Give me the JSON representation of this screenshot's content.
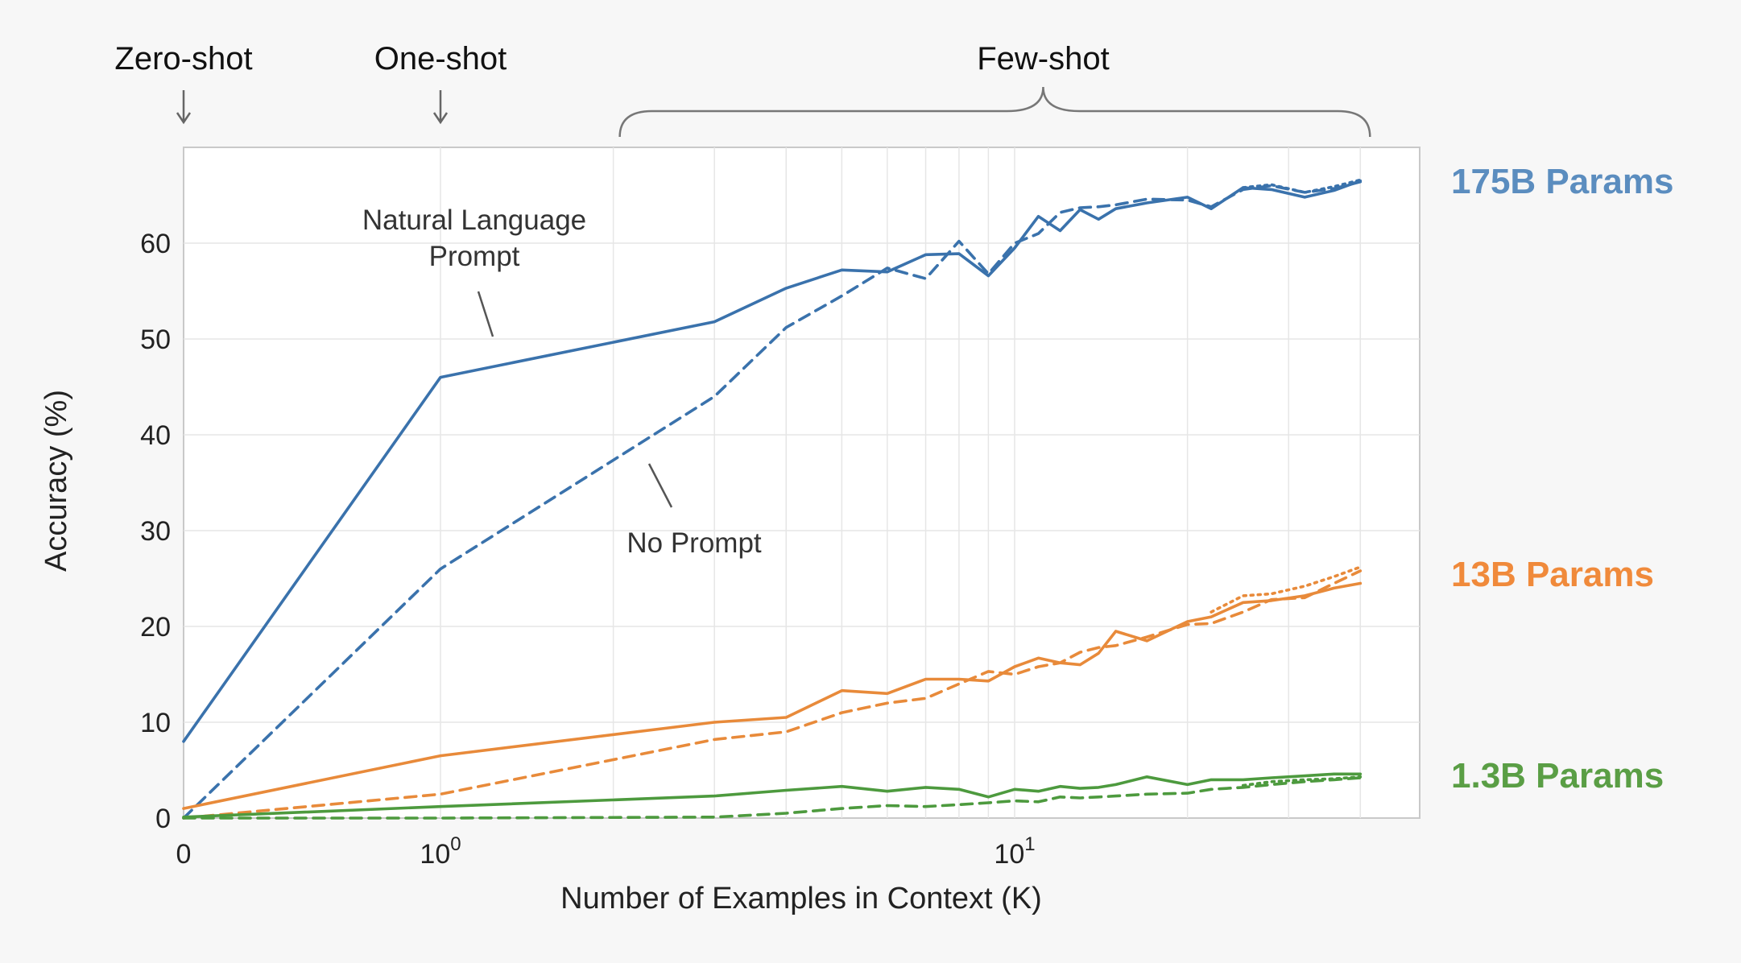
{
  "chart_data": {
    "type": "line",
    "xlabel": "Number of Examples in Context  (K)",
    "ylabel": "Accuracy (%)",
    "x_scale": "symlog",
    "xlim": [
      0,
      40
    ],
    "ylim": [
      0,
      70
    ],
    "y_ticks": [
      0,
      10,
      20,
      30,
      40,
      50,
      60
    ],
    "x_ticks": [
      {
        "value": 0,
        "base": "0",
        "exp": ""
      },
      {
        "value": 1,
        "base": "10",
        "exp": "0"
      },
      {
        "value": 10,
        "base": "10",
        "exp": "1"
      }
    ],
    "grid": true,
    "regimes": [
      {
        "label": "Zero-shot",
        "x": 0
      },
      {
        "label": "One-shot",
        "x": 1
      },
      {
        "label": "Few-shot",
        "x_range": [
          2,
          40
        ]
      }
    ],
    "annotations": [
      {
        "text_lines": [
          "Natural Language",
          "Prompt"
        ],
        "target": "175B Params"
      },
      {
        "text_lines": [
          "No Prompt"
        ],
        "target": "175B Params"
      }
    ],
    "models": [
      {
        "label": "175B Params",
        "color": "#3a72ac",
        "label_color": "#5b8dbf",
        "series": [
          {
            "style": "solid",
            "x": [
              0,
              1,
              3,
              4,
              5,
              6,
              7,
              8,
              9,
              10,
              11,
              12,
              13,
              14,
              15,
              17,
              20,
              22,
              25,
              28,
              32,
              36,
              40
            ],
            "y": [
              8,
              46,
              51.8,
              55.3,
              57.2,
              57,
              58.8,
              58.9,
              56.6,
              59.5,
              62.8,
              61.3,
              63.5,
              62.5,
              63.6,
              64.2,
              64.8,
              63.6,
              65.8,
              65.6,
              64.8,
              65.5,
              66.5
            ]
          },
          {
            "style": "dashed",
            "x": [
              0,
              1,
              3,
              4,
              5,
              6,
              7,
              8,
              9,
              10,
              11,
              12,
              13,
              14,
              15,
              17,
              20,
              22,
              25,
              28,
              32,
              36,
              40
            ],
            "y": [
              0,
              26,
              44,
              51.2,
              54.5,
              57.4,
              56.3,
              60.2,
              56.8,
              60,
              61,
              63.2,
              63.7,
              63.8,
              64,
              64.6,
              64.5,
              63.8,
              65.6,
              66,
              65.3,
              65.7,
              66.4
            ]
          },
          {
            "style": "dotted",
            "x": [
              25,
              28,
              32,
              36,
              40
            ],
            "y": [
              65.8,
              66.1,
              65.3,
              65.9,
              66.6
            ]
          }
        ]
      },
      {
        "label": "13B Params",
        "color": "#e88a3a",
        "label_color": "#f08a3b",
        "series": [
          {
            "style": "solid",
            "x": [
              0,
              1,
              3,
              4,
              5,
              6,
              7,
              8,
              9,
              10,
              11,
              12,
              13,
              14,
              15,
              17,
              20,
              22,
              25,
              28,
              32,
              36,
              40
            ],
            "y": [
              1,
              6.5,
              10,
              10.5,
              13.3,
              13,
              14.5,
              14.5,
              14.3,
              15.8,
              16.7,
              16.2,
              16,
              17.2,
              19.5,
              18.5,
              20.5,
              21,
              22.5,
              22.7,
              23.2,
              24,
              24.5
            ]
          },
          {
            "style": "dashed",
            "x": [
              0,
              1,
              3,
              4,
              5,
              6,
              7,
              8,
              9,
              10,
              11,
              12,
              13,
              14,
              15,
              17,
              20,
              22,
              25,
              28,
              32,
              36,
              40
            ],
            "y": [
              0,
              2.5,
              8.2,
              9,
              11,
              12,
              12.5,
              14,
              15.3,
              15,
              15.8,
              16.2,
              17.3,
              17.8,
              18,
              18.9,
              20.2,
              20.3,
              21.5,
              22.8,
              23,
              24.5,
              25.8
            ]
          },
          {
            "style": "dotted",
            "x": [
              22,
              25,
              28,
              32,
              36,
              40
            ],
            "y": [
              21.5,
              23.2,
              23.4,
              24.2,
              25.2,
              26.2
            ]
          }
        ]
      },
      {
        "label": "1.3B Params",
        "color": "#4d9a3e",
        "label_color": "#5a9e45",
        "series": [
          {
            "style": "solid",
            "x": [
              0,
              1,
              3,
              4,
              5,
              6,
              7,
              8,
              9,
              10,
              11,
              12,
              13,
              14,
              15,
              17,
              20,
              22,
              25,
              28,
              32,
              36,
              40
            ],
            "y": [
              0.1,
              1.2,
              2.3,
              2.9,
              3.3,
              2.8,
              3.2,
              3,
              2.2,
              3,
              2.8,
              3.3,
              3.1,
              3.2,
              3.5,
              4.3,
              3.5,
              4,
              4,
              4.2,
              4.4,
              4.6,
              4.6
            ]
          },
          {
            "style": "dashed",
            "x": [
              0,
              1,
              3,
              4,
              5,
              6,
              7,
              8,
              9,
              10,
              11,
              12,
              13,
              14,
              15,
              17,
              20,
              22,
              25,
              28,
              32,
              36,
              40
            ],
            "y": [
              0,
              0,
              0.1,
              0.5,
              1,
              1.3,
              1.2,
              1.4,
              1.6,
              1.8,
              1.7,
              2.2,
              2.1,
              2.2,
              2.3,
              2.5,
              2.6,
              3,
              3.2,
              3.5,
              3.8,
              4,
              4.2
            ]
          },
          {
            "style": "dotted",
            "x": [
              25,
              28,
              32,
              36,
              40
            ],
            "y": [
              3.4,
              3.8,
              4,
              4.1,
              4.3
            ]
          }
        ]
      }
    ]
  }
}
